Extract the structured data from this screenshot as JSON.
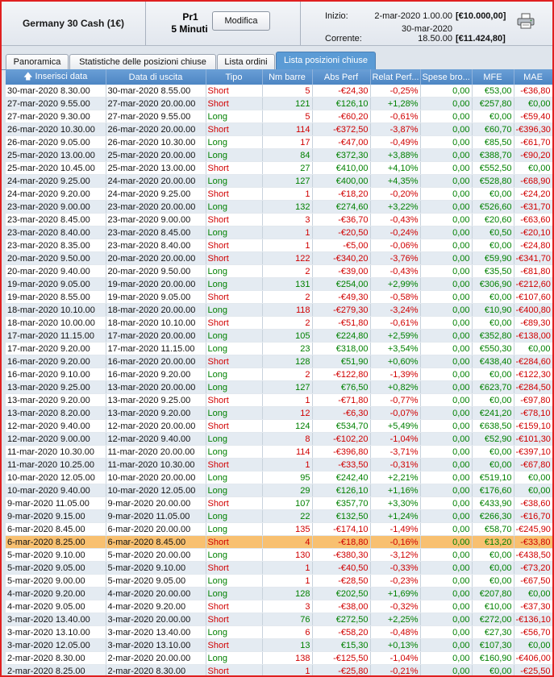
{
  "header": {
    "instrument": "Germany 30 Cash (1€)",
    "profile_name": "Pr1",
    "timeframe": "5 Minuti",
    "modify_label": "Modifica",
    "start_label": "Inizio:",
    "start_date": "2-mar-2020 1.00.00",
    "start_value": "[€10.000,00]",
    "current_label": "Corrente:",
    "current_date": "30-mar-2020 18.50.00",
    "current_value": "[€11.424,80]",
    "print_icon": "printer-icon"
  },
  "tabs": [
    {
      "label": "Panoramica",
      "active": false
    },
    {
      "label": "Statistiche delle posizioni chiuse",
      "active": false
    },
    {
      "label": "Lista ordini",
      "active": false
    },
    {
      "label": "Lista posizioni chiuse",
      "active": true
    }
  ],
  "columns": [
    "Inserisci data",
    "Data di uscita",
    "Tipo",
    "Nm barre",
    "Abs Perf",
    "Relat Perf...",
    "Spese bro...",
    "MFE",
    "MAE"
  ],
  "sort_icon": "sort-arrow-up-icon",
  "selected_row": 35,
  "colors": {
    "negative": "#d00000",
    "positive": "#008000",
    "selected": "#f8c070",
    "header": "#4d86c4"
  },
  "rows": [
    [
      "30-mar-2020 8.30.00",
      "30-mar-2020 8.55.00",
      "Short",
      "5",
      "-€24,30",
      "-0,25%",
      "0,00",
      "€53,00",
      "-€36,80"
    ],
    [
      "27-mar-2020 9.55.00",
      "27-mar-2020 20.00.00",
      "Short",
      "121",
      "€126,10",
      "+1,28%",
      "0,00",
      "€257,80",
      "€0,00"
    ],
    [
      "27-mar-2020 9.30.00",
      "27-mar-2020 9.55.00",
      "Long",
      "5",
      "-€60,20",
      "-0,61%",
      "0,00",
      "€0,00",
      "-€59,40"
    ],
    [
      "26-mar-2020 10.30.00",
      "26-mar-2020 20.00.00",
      "Short",
      "114",
      "-€372,50",
      "-3,87%",
      "0,00",
      "€60,70",
      "-€396,30"
    ],
    [
      "26-mar-2020 9.05.00",
      "26-mar-2020 10.30.00",
      "Long",
      "17",
      "-€47,00",
      "-0,49%",
      "0,00",
      "€85,50",
      "-€61,70"
    ],
    [
      "25-mar-2020 13.00.00",
      "25-mar-2020 20.00.00",
      "Long",
      "84",
      "€372,30",
      "+3,88%",
      "0,00",
      "€388,70",
      "-€90,20"
    ],
    [
      "25-mar-2020 10.45.00",
      "25-mar-2020 13.00.00",
      "Short",
      "27",
      "€410,00",
      "+4,10%",
      "0,00",
      "€552,50",
      "€0,00"
    ],
    [
      "24-mar-2020 9.25.00",
      "24-mar-2020 20.00.00",
      "Long",
      "127",
      "€400,00",
      "+4,35%",
      "0,00",
      "€528,80",
      "-€68,90"
    ],
    [
      "24-mar-2020 9.20.00",
      "24-mar-2020 9.25.00",
      "Short",
      "1",
      "-€18,20",
      "-0,20%",
      "0,00",
      "€0,00",
      "-€24,20"
    ],
    [
      "23-mar-2020 9.00.00",
      "23-mar-2020 20.00.00",
      "Long",
      "132",
      "€274,60",
      "+3,22%",
      "0,00",
      "€526,60",
      "-€31,70"
    ],
    [
      "23-mar-2020 8.45.00",
      "23-mar-2020 9.00.00",
      "Short",
      "3",
      "-€36,70",
      "-0,43%",
      "0,00",
      "€20,60",
      "-€63,60"
    ],
    [
      "23-mar-2020 8.40.00",
      "23-mar-2020 8.45.00",
      "Long",
      "1",
      "-€20,50",
      "-0,24%",
      "0,00",
      "€0,50",
      "-€20,10"
    ],
    [
      "23-mar-2020 8.35.00",
      "23-mar-2020 8.40.00",
      "Short",
      "1",
      "-€5,00",
      "-0,06%",
      "0,00",
      "€0,00",
      "-€24,80"
    ],
    [
      "20-mar-2020 9.50.00",
      "20-mar-2020 20.00.00",
      "Short",
      "122",
      "-€340,20",
      "-3,76%",
      "0,00",
      "€59,90",
      "-€341,70"
    ],
    [
      "20-mar-2020 9.40.00",
      "20-mar-2020 9.50.00",
      "Long",
      "2",
      "-€39,00",
      "-0,43%",
      "0,00",
      "€35,50",
      "-€81,80"
    ],
    [
      "19-mar-2020 9.05.00",
      "19-mar-2020 20.00.00",
      "Long",
      "131",
      "€254,00",
      "+2,99%",
      "0,00",
      "€306,90",
      "-€212,60"
    ],
    [
      "19-mar-2020 8.55.00",
      "19-mar-2020 9.05.00",
      "Short",
      "2",
      "-€49,30",
      "-0,58%",
      "0,00",
      "€0,00",
      "-€107,60"
    ],
    [
      "18-mar-2020 10.10.00",
      "18-mar-2020 20.00.00",
      "Long",
      "118",
      "-€279,30",
      "-3,24%",
      "0,00",
      "€10,90",
      "-€400,80"
    ],
    [
      "18-mar-2020 10.00.00",
      "18-mar-2020 10.10.00",
      "Short",
      "2",
      "-€51,80",
      "-0,61%",
      "0,00",
      "€0,00",
      "-€89,30"
    ],
    [
      "17-mar-2020 11.15.00",
      "17-mar-2020 20.00.00",
      "Long",
      "105",
      "€224,80",
      "+2,59%",
      "0,00",
      "€352,80",
      "-€138,00"
    ],
    [
      "17-mar-2020 9.20.00",
      "17-mar-2020 11.15.00",
      "Long",
      "23",
      "€318,00",
      "+3,54%",
      "0,00",
      "€550,30",
      "€0,00"
    ],
    [
      "16-mar-2020 9.20.00",
      "16-mar-2020 20.00.00",
      "Short",
      "128",
      "€51,90",
      "+0,60%",
      "0,00",
      "€438,40",
      "-€284,60"
    ],
    [
      "16-mar-2020 9.10.00",
      "16-mar-2020 9.20.00",
      "Long",
      "2",
      "-€122,80",
      "-1,39%",
      "0,00",
      "€0,00",
      "-€122,30"
    ],
    [
      "13-mar-2020 9.25.00",
      "13-mar-2020 20.00.00",
      "Long",
      "127",
      "€76,50",
      "+0,82%",
      "0,00",
      "€623,70",
      "-€284,50"
    ],
    [
      "13-mar-2020 9.20.00",
      "13-mar-2020 9.25.00",
      "Short",
      "1",
      "-€71,80",
      "-0,77%",
      "0,00",
      "€0,00",
      "-€97,80"
    ],
    [
      "13-mar-2020 8.20.00",
      "13-mar-2020 9.20.00",
      "Long",
      "12",
      "-€6,30",
      "-0,07%",
      "0,00",
      "€241,20",
      "-€78,10"
    ],
    [
      "12-mar-2020 9.40.00",
      "12-mar-2020 20.00.00",
      "Short",
      "124",
      "€534,70",
      "+5,49%",
      "0,00",
      "€638,50",
      "-€159,10"
    ],
    [
      "12-mar-2020 9.00.00",
      "12-mar-2020 9.40.00",
      "Long",
      "8",
      "-€102,20",
      "-1,04%",
      "0,00",
      "€52,90",
      "-€101,30"
    ],
    [
      "11-mar-2020 10.30.00",
      "11-mar-2020 20.00.00",
      "Long",
      "114",
      "-€396,80",
      "-3,71%",
      "0,00",
      "€0,00",
      "-€397,10"
    ],
    [
      "11-mar-2020 10.25.00",
      "11-mar-2020 10.30.00",
      "Short",
      "1",
      "-€33,50",
      "-0,31%",
      "0,00",
      "€0,00",
      "-€67,80"
    ],
    [
      "10-mar-2020 12.05.00",
      "10-mar-2020 20.00.00",
      "Long",
      "95",
      "€242,40",
      "+2,21%",
      "0,00",
      "€519,10",
      "€0,00"
    ],
    [
      "10-mar-2020 9.40.00",
      "10-mar-2020 12.05.00",
      "Long",
      "29",
      "€126,10",
      "+1,16%",
      "0,00",
      "€176,60",
      "€0,00"
    ],
    [
      "9-mar-2020 11.05.00",
      "9-mar-2020 20.00.00",
      "Short",
      "107",
      "€357,70",
      "+3,30%",
      "0,00",
      "€433,90",
      "-€38,60"
    ],
    [
      "9-mar-2020 9.15.00",
      "9-mar-2020 11.05.00",
      "Long",
      "22",
      "€132,50",
      "+1,24%",
      "0,00",
      "€266,30",
      "-€16,70"
    ],
    [
      "6-mar-2020 8.45.00",
      "6-mar-2020 20.00.00",
      "Long",
      "135",
      "-€174,10",
      "-1,49%",
      "0,00",
      "€58,70",
      "-€245,90"
    ],
    [
      "6-mar-2020 8.25.00",
      "6-mar-2020 8.45.00",
      "Short",
      "4",
      "-€18,80",
      "-0,16%",
      "0,00",
      "€13,20",
      "-€33,80"
    ],
    [
      "5-mar-2020 9.10.00",
      "5-mar-2020 20.00.00",
      "Long",
      "130",
      "-€380,30",
      "-3,12%",
      "0,00",
      "€0,00",
      "-€438,50"
    ],
    [
      "5-mar-2020 9.05.00",
      "5-mar-2020 9.10.00",
      "Short",
      "1",
      "-€40,50",
      "-0,33%",
      "0,00",
      "€0,00",
      "-€73,20"
    ],
    [
      "5-mar-2020 9.00.00",
      "5-mar-2020 9.05.00",
      "Long",
      "1",
      "-€28,50",
      "-0,23%",
      "0,00",
      "€0,00",
      "-€67,50"
    ],
    [
      "4-mar-2020 9.20.00",
      "4-mar-2020 20.00.00",
      "Long",
      "128",
      "€202,50",
      "+1,69%",
      "0,00",
      "€207,80",
      "€0,00"
    ],
    [
      "4-mar-2020 9.05.00",
      "4-mar-2020 9.20.00",
      "Short",
      "3",
      "-€38,00",
      "-0,32%",
      "0,00",
      "€10,00",
      "-€37,30"
    ],
    [
      "3-mar-2020 13.40.00",
      "3-mar-2020 20.00.00",
      "Short",
      "76",
      "€272,50",
      "+2,25%",
      "0,00",
      "€272,00",
      "-€136,10"
    ],
    [
      "3-mar-2020 13.10.00",
      "3-mar-2020 13.40.00",
      "Long",
      "6",
      "-€58,20",
      "-0,48%",
      "0,00",
      "€27,30",
      "-€56,70"
    ],
    [
      "3-mar-2020 12.05.00",
      "3-mar-2020 13.10.00",
      "Short",
      "13",
      "€15,30",
      "+0,13%",
      "0,00",
      "€107,30",
      "€0,00"
    ],
    [
      "2-mar-2020 8.30.00",
      "2-mar-2020 20.00.00",
      "Long",
      "138",
      "-€125,50",
      "-1,04%",
      "0,00",
      "€160,90",
      "-€406,00"
    ],
    [
      "2-mar-2020 8.25.00",
      "2-mar-2020 8.30.00",
      "Short",
      "1",
      "-€25,80",
      "-0,21%",
      "0,00",
      "€0,00",
      "-€25,50"
    ]
  ]
}
